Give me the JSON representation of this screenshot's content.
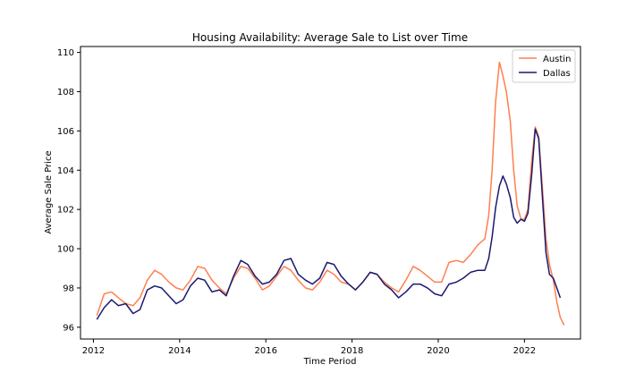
{
  "chart_data": {
    "type": "line",
    "title": "Housing Availability: Average Sale to List over Time",
    "xlabel": "Time Period",
    "ylabel": "Average Sale Price",
    "xlim": [
      2011.7,
      2023.3
    ],
    "ylim": [
      95.4,
      110.3
    ],
    "xticks": [
      2012,
      2014,
      2016,
      2018,
      2020,
      2022
    ],
    "yticks": [
      96,
      98,
      100,
      102,
      104,
      106,
      108,
      110
    ],
    "grid": false,
    "legend": "top-right",
    "series": [
      {
        "name": "Austin",
        "color": "#ff7f50",
        "points": [
          [
            2012.08,
            96.6
          ],
          [
            2012.25,
            97.7
          ],
          [
            2012.42,
            97.8
          ],
          [
            2012.58,
            97.5
          ],
          [
            2012.75,
            97.2
          ],
          [
            2012.92,
            97.1
          ],
          [
            2013.08,
            97.5
          ],
          [
            2013.25,
            98.4
          ],
          [
            2013.42,
            98.9
          ],
          [
            2013.58,
            98.7
          ],
          [
            2013.75,
            98.3
          ],
          [
            2013.92,
            98.0
          ],
          [
            2014.08,
            97.9
          ],
          [
            2014.25,
            98.4
          ],
          [
            2014.42,
            99.1
          ],
          [
            2014.58,
            99.0
          ],
          [
            2014.75,
            98.4
          ],
          [
            2014.92,
            98.0
          ],
          [
            2015.08,
            97.7
          ],
          [
            2015.25,
            98.5
          ],
          [
            2015.42,
            99.1
          ],
          [
            2015.58,
            99.0
          ],
          [
            2015.75,
            98.5
          ],
          [
            2015.92,
            97.9
          ],
          [
            2016.08,
            98.1
          ],
          [
            2016.25,
            98.6
          ],
          [
            2016.42,
            99.1
          ],
          [
            2016.58,
            98.9
          ],
          [
            2016.75,
            98.4
          ],
          [
            2016.92,
            98.0
          ],
          [
            2017.08,
            97.9
          ],
          [
            2017.25,
            98.3
          ],
          [
            2017.42,
            98.9
          ],
          [
            2017.58,
            98.7
          ],
          [
            2017.75,
            98.3
          ],
          [
            2017.92,
            98.2
          ],
          [
            2018.08,
            97.9
          ],
          [
            2018.25,
            98.3
          ],
          [
            2018.42,
            98.8
          ],
          [
            2018.58,
            98.7
          ],
          [
            2018.75,
            98.3
          ],
          [
            2018.92,
            98.0
          ],
          [
            2019.08,
            97.8
          ],
          [
            2019.25,
            98.4
          ],
          [
            2019.42,
            99.1
          ],
          [
            2019.58,
            98.9
          ],
          [
            2019.75,
            98.6
          ],
          [
            2019.92,
            98.3
          ],
          [
            2020.08,
            98.3
          ],
          [
            2020.25,
            99.3
          ],
          [
            2020.42,
            99.4
          ],
          [
            2020.58,
            99.3
          ],
          [
            2020.75,
            99.7
          ],
          [
            2020.92,
            100.2
          ],
          [
            2021.08,
            100.5
          ],
          [
            2021.17,
            101.7
          ],
          [
            2021.25,
            104.0
          ],
          [
            2021.33,
            107.5
          ],
          [
            2021.42,
            109.5
          ],
          [
            2021.5,
            108.8
          ],
          [
            2021.58,
            108.0
          ],
          [
            2021.67,
            106.5
          ],
          [
            2021.75,
            104.0
          ],
          [
            2021.83,
            102.2
          ],
          [
            2021.92,
            101.5
          ],
          [
            2022.0,
            101.5
          ],
          [
            2022.08,
            102.0
          ],
          [
            2022.17,
            104.5
          ],
          [
            2022.25,
            106.2
          ],
          [
            2022.33,
            105.7
          ],
          [
            2022.42,
            103.0
          ],
          [
            2022.5,
            100.5
          ],
          [
            2022.58,
            99.2
          ],
          [
            2022.67,
            98.4
          ],
          [
            2022.75,
            97.3
          ],
          [
            2022.83,
            96.5
          ],
          [
            2022.92,
            96.1
          ]
        ]
      },
      {
        "name": "Dallas",
        "color": "#191970",
        "points": [
          [
            2012.08,
            96.4
          ],
          [
            2012.25,
            97.0
          ],
          [
            2012.42,
            97.4
          ],
          [
            2012.58,
            97.1
          ],
          [
            2012.75,
            97.2
          ],
          [
            2012.92,
            96.7
          ],
          [
            2013.08,
            96.9
          ],
          [
            2013.25,
            97.9
          ],
          [
            2013.42,
            98.1
          ],
          [
            2013.58,
            98.0
          ],
          [
            2013.75,
            97.6
          ],
          [
            2013.92,
            97.2
          ],
          [
            2014.08,
            97.4
          ],
          [
            2014.25,
            98.1
          ],
          [
            2014.42,
            98.5
          ],
          [
            2014.58,
            98.4
          ],
          [
            2014.75,
            97.8
          ],
          [
            2014.92,
            97.9
          ],
          [
            2015.08,
            97.6
          ],
          [
            2015.25,
            98.6
          ],
          [
            2015.42,
            99.4
          ],
          [
            2015.58,
            99.2
          ],
          [
            2015.75,
            98.6
          ],
          [
            2015.92,
            98.2
          ],
          [
            2016.08,
            98.3
          ],
          [
            2016.25,
            98.7
          ],
          [
            2016.42,
            99.4
          ],
          [
            2016.58,
            99.5
          ],
          [
            2016.75,
            98.7
          ],
          [
            2016.92,
            98.4
          ],
          [
            2017.08,
            98.2
          ],
          [
            2017.25,
            98.5
          ],
          [
            2017.42,
            99.3
          ],
          [
            2017.58,
            99.2
          ],
          [
            2017.75,
            98.6
          ],
          [
            2017.92,
            98.2
          ],
          [
            2018.08,
            97.9
          ],
          [
            2018.25,
            98.3
          ],
          [
            2018.42,
            98.8
          ],
          [
            2018.58,
            98.7
          ],
          [
            2018.75,
            98.2
          ],
          [
            2018.92,
            97.9
          ],
          [
            2019.08,
            97.5
          ],
          [
            2019.25,
            97.8
          ],
          [
            2019.42,
            98.2
          ],
          [
            2019.58,
            98.2
          ],
          [
            2019.75,
            98.0
          ],
          [
            2019.92,
            97.7
          ],
          [
            2020.08,
            97.6
          ],
          [
            2020.25,
            98.2
          ],
          [
            2020.42,
            98.3
          ],
          [
            2020.58,
            98.5
          ],
          [
            2020.75,
            98.8
          ],
          [
            2020.92,
            98.9
          ],
          [
            2021.08,
            98.9
          ],
          [
            2021.17,
            99.5
          ],
          [
            2021.25,
            100.6
          ],
          [
            2021.33,
            102.1
          ],
          [
            2021.42,
            103.2
          ],
          [
            2021.5,
            103.7
          ],
          [
            2021.58,
            103.3
          ],
          [
            2021.67,
            102.6
          ],
          [
            2021.75,
            101.6
          ],
          [
            2021.83,
            101.3
          ],
          [
            2021.92,
            101.5
          ],
          [
            2022.0,
            101.4
          ],
          [
            2022.08,
            101.8
          ],
          [
            2022.17,
            103.8
          ],
          [
            2022.25,
            106.1
          ],
          [
            2022.33,
            105.6
          ],
          [
            2022.42,
            102.5
          ],
          [
            2022.5,
            99.8
          ],
          [
            2022.58,
            98.7
          ],
          [
            2022.67,
            98.5
          ],
          [
            2022.75,
            98.0
          ],
          [
            2022.83,
            97.5
          ]
        ]
      }
    ]
  }
}
